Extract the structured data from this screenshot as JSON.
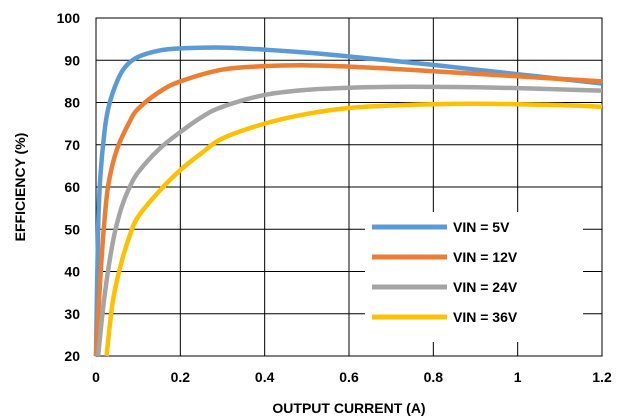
{
  "chart_data": {
    "type": "line",
    "title": "",
    "xlabel": "OUTPUT CURRENT (A)",
    "ylabel": "EFFICIENCY (%)",
    "xlim": [
      0,
      1.2
    ],
    "ylim": [
      20,
      100
    ],
    "xticks": [
      0,
      0.2,
      0.4,
      0.6,
      0.8,
      1,
      1.2
    ],
    "xtick_labels": [
      "0",
      "0.2",
      "0.4",
      "0.6",
      "0.8",
      "1",
      "1.2"
    ],
    "yticks": [
      20,
      30,
      40,
      50,
      60,
      70,
      80,
      90,
      100
    ],
    "ytick_labels": [
      "20",
      "30",
      "40",
      "50",
      "60",
      "70",
      "80",
      "90",
      "100"
    ],
    "grid": true,
    "legend_position": "bottom-right",
    "series": [
      {
        "name": "VIN = 5V",
        "color": "#5B9BD5",
        "points": [
          [
            0,
            20
          ],
          [
            0.005,
            50
          ],
          [
            0.01,
            62
          ],
          [
            0.02,
            73
          ],
          [
            0.03,
            79
          ],
          [
            0.05,
            85
          ],
          [
            0.07,
            88.5
          ],
          [
            0.1,
            90.8
          ],
          [
            0.15,
            92.3
          ],
          [
            0.2,
            92.8
          ],
          [
            0.3,
            93
          ],
          [
            0.4,
            92.5
          ],
          [
            0.5,
            91.8
          ],
          [
            0.6,
            90.9
          ],
          [
            0.7,
            89.9
          ],
          [
            0.8,
            88.9
          ],
          [
            0.9,
            87.8
          ],
          [
            1.0,
            86.7
          ],
          [
            1.1,
            85.6
          ],
          [
            1.2,
            84.5
          ]
        ]
      },
      {
        "name": "VIN = 12V",
        "color": "#ED7D31",
        "points": [
          [
            0,
            20
          ],
          [
            0.01,
            38
          ],
          [
            0.02,
            52
          ],
          [
            0.03,
            61
          ],
          [
            0.05,
            69
          ],
          [
            0.08,
            75.5
          ],
          [
            0.1,
            78.5
          ],
          [
            0.15,
            82.5
          ],
          [
            0.2,
            85
          ],
          [
            0.3,
            87.8
          ],
          [
            0.4,
            88.6
          ],
          [
            0.5,
            88.8
          ],
          [
            0.6,
            88.5
          ],
          [
            0.7,
            88
          ],
          [
            0.8,
            87.4
          ],
          [
            0.9,
            86.8
          ],
          [
            1.0,
            86.2
          ],
          [
            1.1,
            85.6
          ],
          [
            1.2,
            85
          ]
        ]
      },
      {
        "name": "VIN = 24V",
        "color": "#A5A5A5",
        "points": [
          [
            0.005,
            20
          ],
          [
            0.02,
            34
          ],
          [
            0.04,
            47
          ],
          [
            0.06,
            55
          ],
          [
            0.08,
            60
          ],
          [
            0.1,
            63.5
          ],
          [
            0.15,
            69
          ],
          [
            0.2,
            73
          ],
          [
            0.25,
            76.5
          ],
          [
            0.3,
            79
          ],
          [
            0.4,
            81.8
          ],
          [
            0.5,
            83
          ],
          [
            0.6,
            83.5
          ],
          [
            0.7,
            83.7
          ],
          [
            0.8,
            83.7
          ],
          [
            0.9,
            83.6
          ],
          [
            1.0,
            83.4
          ],
          [
            1.1,
            83.1
          ],
          [
            1.2,
            82.8
          ]
        ]
      },
      {
        "name": "VIN = 36V",
        "color": "#FFC000",
        "points": [
          [
            0.025,
            20
          ],
          [
            0.04,
            33
          ],
          [
            0.06,
            42
          ],
          [
            0.08,
            48.5
          ],
          [
            0.1,
            53
          ],
          [
            0.15,
            59
          ],
          [
            0.2,
            64
          ],
          [
            0.25,
            68
          ],
          [
            0.3,
            71.5
          ],
          [
            0.4,
            75
          ],
          [
            0.5,
            77.3
          ],
          [
            0.6,
            78.7
          ],
          [
            0.7,
            79.3
          ],
          [
            0.8,
            79.6
          ],
          [
            0.9,
            79.7
          ],
          [
            1.0,
            79.6
          ],
          [
            1.1,
            79.4
          ],
          [
            1.2,
            79
          ]
        ]
      }
    ]
  }
}
